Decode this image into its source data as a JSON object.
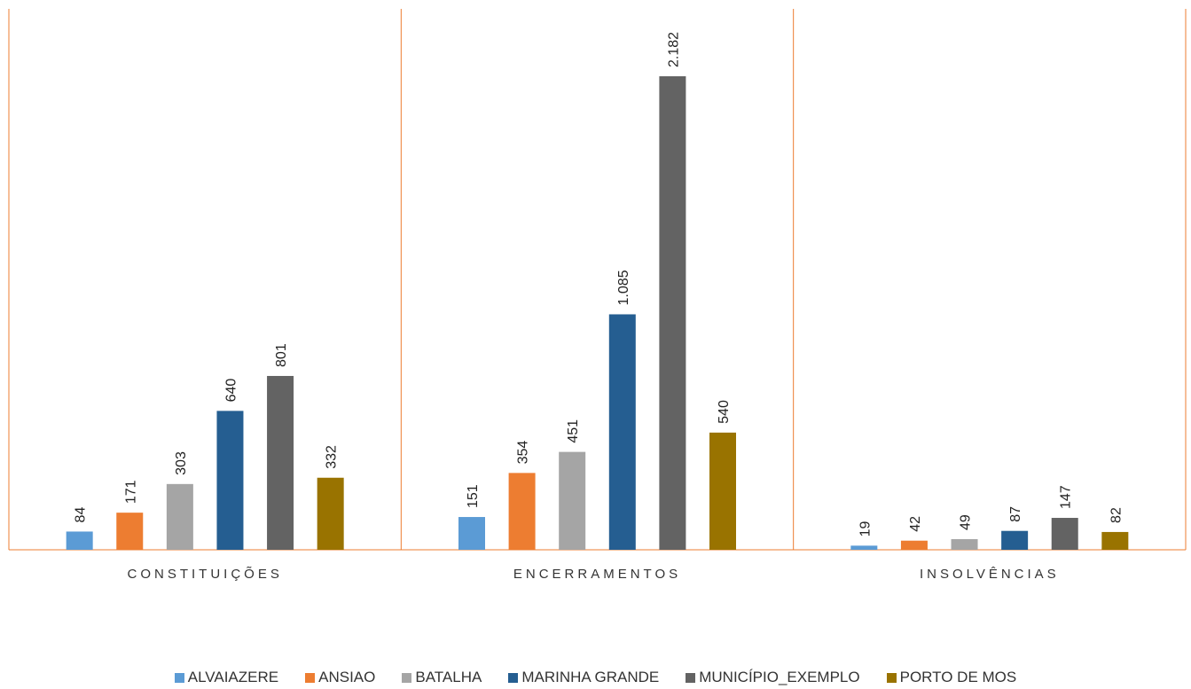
{
  "chart_data": {
    "type": "bar",
    "categories": [
      "CONSTITUIÇÕES",
      "ENCERRAMENTOS",
      "INSOLVÊNCIAS"
    ],
    "series": [
      {
        "name": "ALVAIAZERE",
        "color": "#5b9bd5",
        "values": [
          84,
          151,
          19
        ],
        "labels": [
          "84",
          "151",
          "19"
        ]
      },
      {
        "name": "ANSIAO",
        "color": "#ed7d31",
        "values": [
          171,
          354,
          42
        ],
        "labels": [
          "171",
          "354",
          "42"
        ]
      },
      {
        "name": "BATALHA",
        "color": "#a5a5a5",
        "values": [
          303,
          451,
          49
        ],
        "labels": [
          "303",
          "451",
          "49"
        ]
      },
      {
        "name": "MARINHA GRANDE",
        "color": "#255e91",
        "values": [
          640,
          1085,
          87
        ],
        "labels": [
          "640",
          "1.085",
          "87"
        ]
      },
      {
        "name": "MUNICÍPIO_EXEMPLO",
        "color": "#636363",
        "values": [
          801,
          2182,
          147
        ],
        "labels": [
          "801",
          "2.182",
          "147"
        ]
      },
      {
        "name": "PORTO DE MOS",
        "color": "#997300",
        "values": [
          332,
          540,
          82
        ],
        "labels": [
          "332",
          "540",
          "82"
        ]
      }
    ],
    "ylim": [
      0,
      2500
    ],
    "grid": false,
    "legend_position": "bottom",
    "axis_color": "#ed7d31"
  }
}
